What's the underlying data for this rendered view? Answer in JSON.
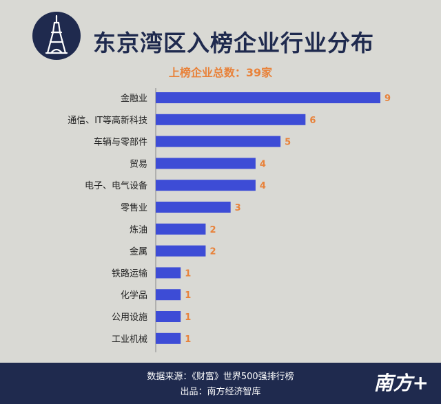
{
  "title": "东京湾区入榜企业行业分布",
  "subtitle": "上榜企业总数：39家",
  "colors": {
    "bar": "#3d4cd6",
    "value_label": "#e8823a",
    "navy": "#1f2a4e"
  },
  "logo": {
    "icon": "tokyo-tower-icon"
  },
  "chart_data": {
    "type": "bar",
    "orientation": "horizontal",
    "categories": [
      "金融业",
      "通信、IT等高新科技",
      "车辆与零部件",
      "贸易",
      "电子、电气设备",
      "零售业",
      "炼油",
      "金属",
      "铁路运输",
      "化学品",
      "公用设施",
      "工业机械"
    ],
    "values": [
      9,
      6,
      5,
      4,
      4,
      3,
      2,
      2,
      1,
      1,
      1,
      1
    ],
    "xlim": [
      0,
      9
    ],
    "grid": false,
    "title": "东京湾区入榜企业行业分布"
  },
  "footer": {
    "source": "数据来源：《财富》世界500强排行榜",
    "producer": "出品：南方经济智库",
    "watermark": "南方+"
  }
}
